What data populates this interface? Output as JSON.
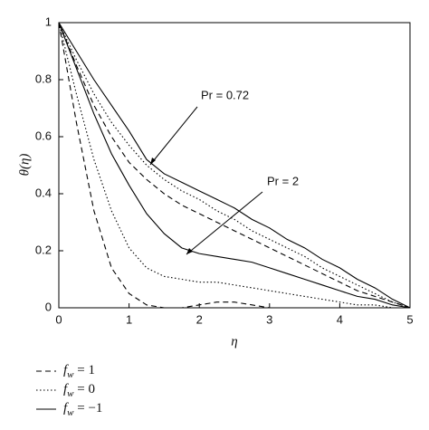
{
  "chart_data": {
    "type": "line",
    "x_label": "η",
    "y_label": "θ(η)",
    "x": [
      0,
      0.25,
      0.5,
      0.75,
      1,
      1.25,
      1.5,
      1.75,
      2,
      2.25,
      2.5,
      2.75,
      3,
      3.25,
      3.5,
      3.75,
      4,
      4.25,
      4.5,
      4.75,
      5
    ],
    "series": [
      {
        "name": "f_w = 1",
        "dash": "dashed",
        "color": "#000000",
        "values": [
          1,
          0.85,
          0.71,
          0.6,
          0.51,
          0.45,
          0.4,
          0.36,
          0.33,
          0.3,
          0.27,
          0.24,
          0.21,
          0.18,
          0.15,
          0.12,
          0.09,
          0.06,
          0.04,
          0.02,
          0
        ]
      },
      {
        "name": "f_w = 0",
        "dash": "dotted",
        "color": "#000000",
        "values": [
          1,
          0.87,
          0.75,
          0.65,
          0.57,
          0.5,
          0.45,
          0.41,
          0.38,
          0.34,
          0.31,
          0.27,
          0.24,
          0.21,
          0.18,
          0.14,
          0.11,
          0.08,
          0.05,
          0.02,
          0
        ]
      },
      {
        "name": "f_w = −1",
        "dash": "solid",
        "color": "#000000",
        "values": [
          1,
          0.9,
          0.8,
          0.71,
          0.62,
          0.52,
          0.47,
          0.44,
          0.41,
          0.38,
          0.35,
          0.31,
          0.28,
          0.24,
          0.21,
          0.17,
          0.14,
          0.1,
          0.07,
          0.03,
          0
        ]
      },
      {
        "name": "f_w = 1",
        "dash": "dashed",
        "color": "#000000",
        "values": [
          1,
          0.65,
          0.34,
          0.14,
          0.05,
          0.01,
          0,
          0,
          0.01,
          0.02,
          0.02,
          0.01,
          0,
          0,
          0,
          0,
          0,
          0,
          0,
          0,
          0
        ]
      },
      {
        "name": "f_w = 0",
        "dash": "dotted",
        "color": "#000000",
        "values": [
          1,
          0.75,
          0.52,
          0.34,
          0.21,
          0.14,
          0.11,
          0.1,
          0.09,
          0.09,
          0.08,
          0.07,
          0.06,
          0.05,
          0.04,
          0.03,
          0.02,
          0.01,
          0.01,
          0,
          0
        ]
      },
      {
        "name": "f_w = −1",
        "dash": "solid",
        "color": "#000000",
        "values": [
          1,
          0.84,
          0.68,
          0.54,
          0.43,
          0.33,
          0.26,
          0.21,
          0.19,
          0.18,
          0.17,
          0.16,
          0.14,
          0.12,
          0.1,
          0.08,
          0.06,
          0.04,
          0.03,
          0.01,
          0
        ]
      }
    ],
    "annotations": [
      "Pr = 0.72",
      "Pr = 2"
    ],
    "xlim": [
      0,
      5
    ],
    "xticks": [
      0,
      1,
      2,
      3,
      4,
      5
    ],
    "ylim": [
      0,
      1
    ],
    "yticks": [
      0,
      0.2,
      0.4,
      0.6,
      0.8,
      1
    ]
  }
}
